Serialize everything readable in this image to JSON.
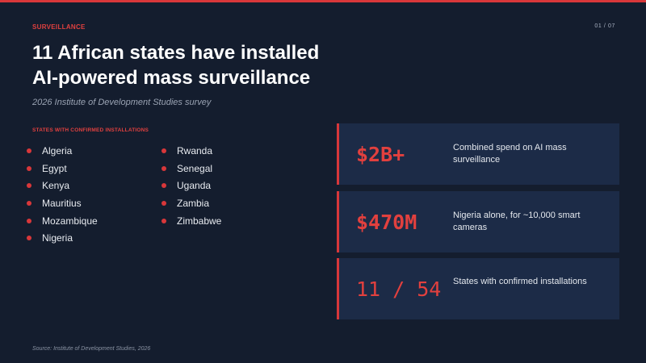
{
  "header": {
    "eyebrow": "SURVEILLANCE",
    "page_indicator": "01 / 07"
  },
  "title": {
    "line1": "11 African states have installed",
    "line2": "AI-powered mass surveillance"
  },
  "subtitle": "2026 Institute of Development Studies survey",
  "states": {
    "label": "STATES WITH CONFIRMED INSTALLATIONS",
    "column_a": [
      "Algeria",
      "Egypt",
      "Kenya",
      "Mauritius",
      "Mozambique",
      "Nigeria"
    ],
    "column_b": [
      "Rwanda",
      "Senegal",
      "Uganda",
      "Zambia",
      "Zimbabwe"
    ]
  },
  "stats": [
    {
      "value": "$2B+",
      "description": "Combined spend on AI mass surveillance"
    },
    {
      "value": "$470M",
      "description": "Nigeria alone, for ~10,000 smart cameras"
    },
    {
      "value": "11 / 54",
      "description": "States with confirmed installations"
    }
  ],
  "source": "Source: Institute of Development Studies, 2026",
  "colors": {
    "background": "#141d2e",
    "accent": "#d8373a",
    "card": "#1c2b47"
  }
}
